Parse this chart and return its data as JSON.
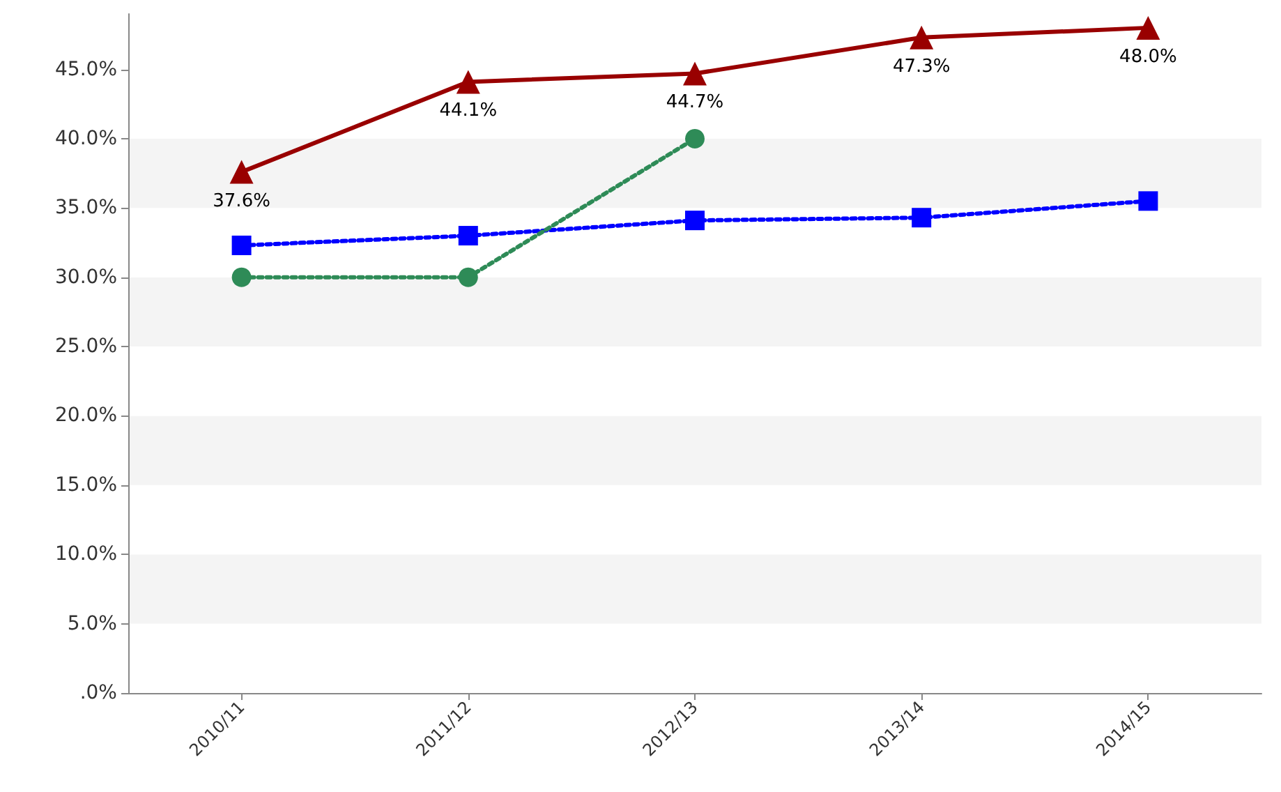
{
  "chart_data": {
    "type": "line",
    "categories": [
      "2010/11",
      "2011/12",
      "2012/13",
      "2013/14",
      "2014/15"
    ],
    "series": [
      {
        "color": "#990000",
        "marker": "triangle",
        "line_style": "solid",
        "values": [
          37.6,
          44.1,
          44.7,
          47.3,
          48.0
        ],
        "value_labels": [
          "37.6%",
          "44.1%",
          "44.7%",
          "47.3%",
          "48.0%"
        ]
      },
      {
        "color": "#0000ff",
        "marker": "square",
        "line_style": "dotted",
        "values": [
          32.3,
          33.0,
          34.1,
          34.3,
          35.5
        ]
      },
      {
        "color": "#2e8b57",
        "marker": "circle",
        "line_style": "dotted",
        "values": [
          30,
          30,
          40,
          null,
          null
        ]
      }
    ],
    "ylim": [
      0,
      49
    ],
    "yticks": [
      {
        "value": 0,
        "label": ".0%"
      },
      {
        "value": 5,
        "label": "5.0%"
      },
      {
        "value": 10,
        "label": "10.0%"
      },
      {
        "value": 15,
        "label": "15.0%"
      },
      {
        "value": 20,
        "label": "20.0%"
      },
      {
        "value": 25,
        "label": "25.0%"
      },
      {
        "value": 30,
        "label": "30.0%"
      },
      {
        "value": 35,
        "label": "35.0%"
      },
      {
        "value": 40,
        "label": "40.0%"
      },
      {
        "value": 45,
        "label": "45.0%"
      }
    ]
  }
}
